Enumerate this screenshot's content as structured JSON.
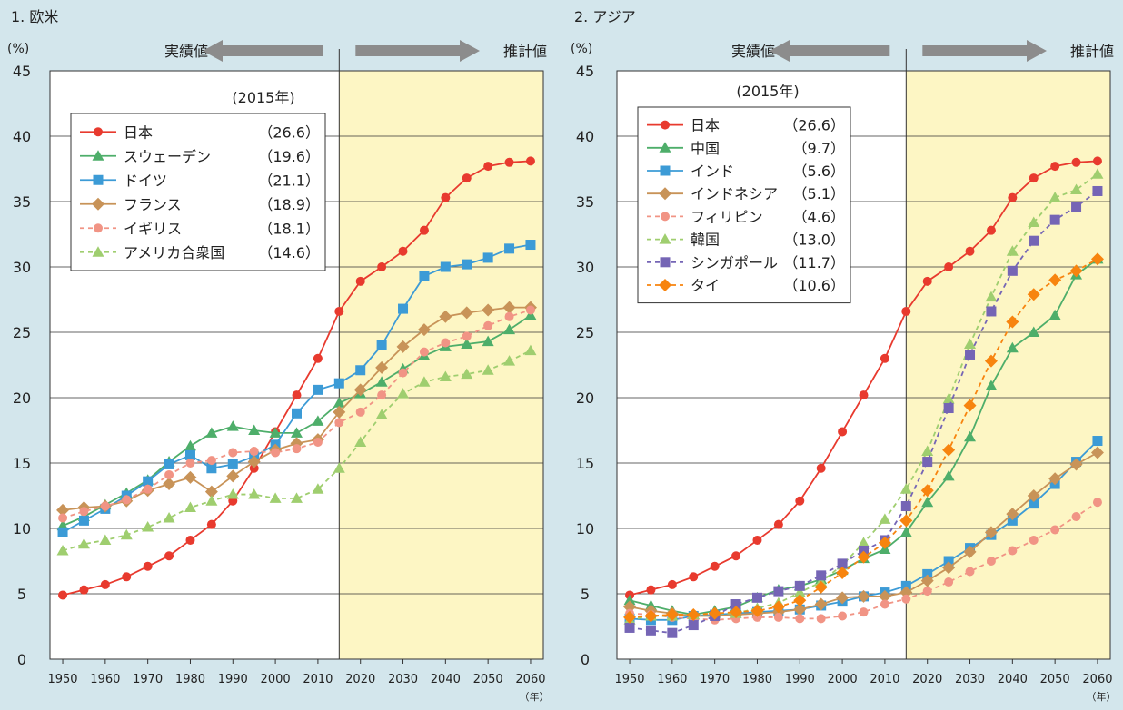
{
  "colors": {
    "background": "#d3e6ec",
    "forecast_band": "#fdf6c4",
    "arrow": "#8c8c8c"
  },
  "chart_data": [
    {
      "type": "line",
      "title": "1. 欧米",
      "y_unit": "(%)",
      "x_unit": "（年）",
      "actual_label": "実績値",
      "forecast_label": "推計値",
      "legend_title": "(2015年)",
      "ylim": [
        0,
        45
      ],
      "yticks": [
        0,
        5,
        10,
        15,
        20,
        25,
        30,
        35,
        40,
        45
      ],
      "xlim": [
        1947,
        2063
      ],
      "xticks": [
        1950,
        1960,
        1970,
        1980,
        1990,
        2000,
        2010,
        2020,
        2030,
        2040,
        2050,
        2060
      ],
      "divider_year": 2015,
      "x": [
        1950,
        1955,
        1960,
        1965,
        1970,
        1975,
        1980,
        1985,
        1990,
        1995,
        2000,
        2005,
        2010,
        2015,
        2020,
        2025,
        2030,
        2035,
        2040,
        2045,
        2050,
        2055,
        2060
      ],
      "series": [
        {
          "name": "日本",
          "value_2015": "（26.6）",
          "color": "#e83a2e",
          "marker": "circle",
          "dashed": false,
          "values": [
            4.9,
            5.3,
            5.7,
            6.3,
            7.1,
            7.9,
            9.1,
            10.3,
            12.1,
            14.6,
            17.4,
            20.2,
            23.0,
            26.6,
            28.9,
            30.0,
            31.2,
            32.8,
            35.3,
            36.8,
            37.7,
            38.0,
            38.1
          ]
        },
        {
          "name": "スウェーデン",
          "value_2015": "（19.6）",
          "color": "#4eae6a",
          "marker": "triangle",
          "dashed": false,
          "values": [
            10.2,
            10.9,
            11.8,
            12.7,
            13.7,
            15.1,
            16.3,
            17.3,
            17.8,
            17.5,
            17.3,
            17.3,
            18.2,
            19.6,
            20.3,
            21.2,
            22.2,
            23.2,
            23.9,
            24.1,
            24.3,
            25.2,
            26.3
          ]
        },
        {
          "name": "ドイツ",
          "value_2015": "（21.1）",
          "color": "#3c9bd6",
          "marker": "square",
          "dashed": false,
          "values": [
            9.7,
            10.6,
            11.5,
            12.5,
            13.6,
            14.9,
            15.6,
            14.6,
            14.9,
            15.5,
            16.4,
            18.8,
            20.6,
            21.1,
            22.1,
            24.0,
            26.8,
            29.3,
            30.0,
            30.2,
            30.7,
            31.4,
            31.7
          ]
        },
        {
          "name": "フランス",
          "value_2015": "（18.9）",
          "color": "#c89358",
          "marker": "diamond",
          "dashed": false,
          "values": [
            11.4,
            11.6,
            11.7,
            12.1,
            12.9,
            13.4,
            13.9,
            12.8,
            14.0,
            15.1,
            16.0,
            16.5,
            16.8,
            18.9,
            20.6,
            22.3,
            23.9,
            25.2,
            26.2,
            26.5,
            26.7,
            26.9,
            26.9
          ]
        },
        {
          "name": "イギリス",
          "value_2015": "（18.1）",
          "color": "#f19485",
          "marker": "circle",
          "dashed": true,
          "values": [
            10.8,
            11.3,
            11.7,
            12.2,
            13.0,
            14.1,
            15.0,
            15.2,
            15.8,
            15.9,
            15.8,
            16.1,
            16.6,
            18.1,
            18.9,
            20.2,
            21.9,
            23.5,
            24.2,
            24.7,
            25.5,
            26.2,
            26.7
          ]
        },
        {
          "name": "アメリカ合衆国",
          "value_2015": "（14.6）",
          "color": "#9fce6f",
          "marker": "triangle",
          "dashed": true,
          "values": [
            8.3,
            8.8,
            9.1,
            9.5,
            10.1,
            10.8,
            11.6,
            12.1,
            12.6,
            12.6,
            12.3,
            12.3,
            13.0,
            14.6,
            16.6,
            18.7,
            20.3,
            21.2,
            21.6,
            21.8,
            22.1,
            22.8,
            23.6
          ]
        }
      ]
    },
    {
      "type": "line",
      "title": "2. アジア",
      "y_unit": "(%)",
      "x_unit": "（年）",
      "actual_label": "実績値",
      "forecast_label": "推計値",
      "legend_title": "(2015年)",
      "ylim": [
        0,
        45
      ],
      "yticks": [
        0,
        5,
        10,
        15,
        20,
        25,
        30,
        35,
        40,
        45
      ],
      "xlim": [
        1947,
        2063
      ],
      "xticks": [
        1950,
        1960,
        1970,
        1980,
        1990,
        2000,
        2010,
        2020,
        2030,
        2040,
        2050,
        2060
      ],
      "divider_year": 2015,
      "x": [
        1950,
        1955,
        1960,
        1965,
        1970,
        1975,
        1980,
        1985,
        1990,
        1995,
        2000,
        2005,
        2010,
        2015,
        2020,
        2025,
        2030,
        2035,
        2040,
        2045,
        2050,
        2055,
        2060
      ],
      "series": [
        {
          "name": "日本",
          "value_2015": "（26.6）",
          "color": "#e83a2e",
          "marker": "circle",
          "dashed": false,
          "values": [
            4.9,
            5.3,
            5.7,
            6.3,
            7.1,
            7.9,
            9.1,
            10.3,
            12.1,
            14.6,
            17.4,
            20.2,
            23.0,
            26.6,
            28.9,
            30.0,
            31.2,
            32.8,
            35.3,
            36.8,
            37.7,
            38.0,
            38.1
          ]
        },
        {
          "name": "中国",
          "value_2015": "（9.7）",
          "color": "#4eae6a",
          "marker": "triangle",
          "dashed": false,
          "values": [
            4.5,
            4.1,
            3.7,
            3.4,
            3.7,
            4.0,
            4.7,
            5.3,
            5.6,
            6.1,
            6.8,
            7.7,
            8.4,
            9.7,
            12.0,
            14.0,
            17.0,
            20.9,
            23.8,
            25.0,
            26.3,
            29.4,
            30.6
          ]
        },
        {
          "name": "インド",
          "value_2015": "（5.6）",
          "color": "#3c9bd6",
          "marker": "square",
          "dashed": false,
          "values": [
            3.1,
            3.0,
            3.0,
            3.3,
            3.4,
            3.5,
            3.6,
            3.7,
            3.8,
            4.1,
            4.4,
            4.8,
            5.1,
            5.6,
            6.5,
            7.5,
            8.5,
            9.5,
            10.6,
            11.9,
            13.4,
            15.1,
            16.7
          ]
        },
        {
          "name": "インドネシア",
          "value_2015": "（5.1）",
          "color": "#c89358",
          "marker": "diamond",
          "dashed": false,
          "values": [
            4.0,
            3.7,
            3.5,
            3.3,
            3.3,
            3.4,
            3.5,
            3.6,
            3.8,
            4.2,
            4.7,
            4.8,
            4.8,
            5.1,
            6.0,
            7.0,
            8.2,
            9.7,
            11.1,
            12.5,
            13.8,
            14.9,
            15.8
          ]
        },
        {
          "name": "フィリピン",
          "value_2015": "（4.6）",
          "color": "#f19485",
          "marker": "circle",
          "dashed": true,
          "values": [
            3.5,
            3.4,
            3.2,
            3.1,
            3.0,
            3.1,
            3.2,
            3.2,
            3.1,
            3.1,
            3.3,
            3.6,
            4.2,
            4.6,
            5.2,
            5.9,
            6.7,
            7.5,
            8.3,
            9.1,
            9.9,
            10.9,
            12.0
          ]
        },
        {
          "name": "韓国",
          "value_2015": "（13.0）",
          "color": "#9fce6f",
          "marker": "triangle",
          "dashed": true,
          "values": [
            3.0,
            3.3,
            3.3,
            3.4,
            3.5,
            3.5,
            3.9,
            4.3,
            5.1,
            5.9,
            7.2,
            8.9,
            10.7,
            13.0,
            15.9,
            19.9,
            24.1,
            27.7,
            31.2,
            33.4,
            35.3,
            35.9,
            37.1
          ]
        },
        {
          "name": "シンガポール",
          "value_2015": "（11.7）",
          "color": "#7565b5",
          "marker": "square",
          "dashed": true,
          "values": [
            2.4,
            2.2,
            2.0,
            2.6,
            3.3,
            4.2,
            4.7,
            5.2,
            5.6,
            6.4,
            7.3,
            8.3,
            9.1,
            11.7,
            15.1,
            19.2,
            23.3,
            26.6,
            29.7,
            32.0,
            33.6,
            34.6,
            35.8
          ]
        },
        {
          "name": "タイ",
          "value_2015": "（10.6）",
          "color": "#f7840f",
          "marker": "diamond",
          "dashed": true,
          "values": [
            3.2,
            3.3,
            3.4,
            3.4,
            3.5,
            3.6,
            3.7,
            4.0,
            4.5,
            5.5,
            6.6,
            7.8,
            8.9,
            10.6,
            12.9,
            16.0,
            19.4,
            22.8,
            25.8,
            27.9,
            29.0,
            29.7,
            30.6
          ]
        }
      ]
    }
  ]
}
